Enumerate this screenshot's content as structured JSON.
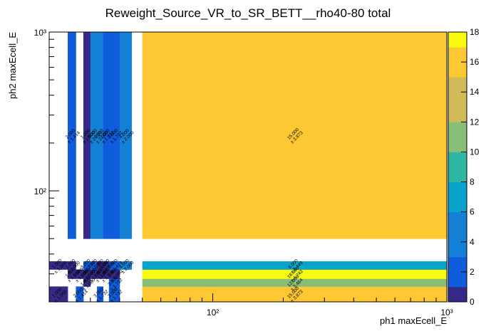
{
  "chart_data": {
    "type": "heatmap",
    "title": "Reweight_Source_VR_to_SR_BETT__rho40-80 total",
    "xlabel": "ph1 maxEcell_E",
    "ylabel": "ph2 maxEcell_E",
    "x_scale": "log",
    "y_scale": "log",
    "xlim": [
      20,
      1000
    ],
    "ylim": [
      20,
      1000
    ],
    "zlim": [
      0,
      18
    ],
    "x_edges": [
      20,
      24,
      26,
      28,
      30,
      32,
      34,
      36,
      40,
      45,
      50,
      1000
    ],
    "y_edges": [
      20,
      25,
      28,
      32,
      36,
      40,
      45,
      50,
      1000
    ],
    "x_ticks": [
      {
        "value": 100,
        "label": "10²"
      },
      {
        "value": 1000,
        "label": "10³"
      }
    ],
    "y_ticks": [
      {
        "value": 100,
        "label": "10²"
      },
      {
        "value": 1000,
        "label": "10³"
      }
    ],
    "colorbar_ticks": [
      "0",
      "2",
      "4",
      "6",
      "8",
      "10",
      "12",
      "14",
      "16",
      "18"
    ],
    "colorbar_palette": [
      "#352a87",
      "#0f5cdd",
      "#1481d6",
      "#06a4ca",
      "#2eb7a4",
      "#87bf77",
      "#d1bb59",
      "#fec832",
      "#f9fb0e"
    ],
    "cells": [
      {
        "ix": 0,
        "iy": 0,
        "value": 1,
        "label": "1.000",
        "error": "± 1.000"
      },
      {
        "ix": 2,
        "iy": 0,
        "value": 2,
        "label": "2.000",
        "error": "± 1.414"
      },
      {
        "ix": 5,
        "iy": 0,
        "value": 3,
        "label": "3.000",
        "error": "± 1.732"
      },
      {
        "ix": 7,
        "iy": 0,
        "value": 3,
        "label": "3.000",
        "error": "± 1.732"
      },
      {
        "ix": 10,
        "iy": 0,
        "value": 15,
        "label": "15.000",
        "error": "± 3.873"
      },
      {
        "ix": 3,
        "iy": 1,
        "value": 1,
        "label": "1.000",
        "error": "± 1.000"
      },
      {
        "ix": 7,
        "iy": 1,
        "value": 3,
        "label": "3.000",
        "error": "± 1.732"
      },
      {
        "ix": 10,
        "iy": 1,
        "value": 12,
        "label": "12.000",
        "error": "± 3.464"
      },
      {
        "ix": 1,
        "iy": 2,
        "value": 1,
        "label": "1.000",
        "error": "± 1.000"
      },
      {
        "ix": 2,
        "iy": 2,
        "value": 1,
        "label": "1.000",
        "error": "± 1.000"
      },
      {
        "ix": 3,
        "iy": 2,
        "value": 1,
        "label": "1.000",
        "error": "± 1.000"
      },
      {
        "ix": 4,
        "iy": 2,
        "value": 1,
        "label": "1.000",
        "error": "± 1.000"
      },
      {
        "ix": 5,
        "iy": 2,
        "value": 1,
        "label": "1.000",
        "error": "± 1.000"
      },
      {
        "ix": 6,
        "iy": 2,
        "value": 1,
        "label": "1.000",
        "error": "± 1.000"
      },
      {
        "ix": 7,
        "iy": 2,
        "value": 1,
        "label": "1.000",
        "error": "± 1.000"
      },
      {
        "ix": 10,
        "iy": 2,
        "value": 18,
        "label": "18.000",
        "error": "± 4.243"
      },
      {
        "ix": 0,
        "iy": 3,
        "value": 1,
        "label": "1.000",
        "error": "± 1.000"
      },
      {
        "ix": 1,
        "iy": 3,
        "value": 1,
        "label": "1.000",
        "error": "± 1.000"
      },
      {
        "ix": 3,
        "iy": 3,
        "value": 3,
        "label": "3.000",
        "error": "± 1.732"
      },
      {
        "ix": 4,
        "iy": 3,
        "value": 3,
        "label": "3.000",
        "error": "± 1.732"
      },
      {
        "ix": 5,
        "iy": 3,
        "value": 1,
        "label": "1.000",
        "error": "± 1.000"
      },
      {
        "ix": 6,
        "iy": 3,
        "value": 1,
        "label": "1.000",
        "error": "± 1.000"
      },
      {
        "ix": 7,
        "iy": 3,
        "value": 2,
        "label": "2.000",
        "error": "± 1.414"
      },
      {
        "ix": 8,
        "iy": 3,
        "value": 4,
        "label": "4.000",
        "error": "± 2.000"
      },
      {
        "ix": 10,
        "iy": 3,
        "value": 6,
        "label": "6.000",
        "error": "± 2.449"
      },
      {
        "ix": 1,
        "iy": 7,
        "value": 2,
        "label": "2.000",
        "error": "± 1.414"
      },
      {
        "ix": 3,
        "iy": 7,
        "value": 1,
        "label": "1.000",
        "error": "± 1.000"
      },
      {
        "ix": 4,
        "iy": 7,
        "value": 5,
        "label": "5.000",
        "error": "± 2.236"
      },
      {
        "ix": 5,
        "iy": 7,
        "value": 4,
        "label": "4.000",
        "error": "± 2.000"
      },
      {
        "ix": 6,
        "iy": 7,
        "value": 3,
        "label": "3.000",
        "error": "± 1.732"
      },
      {
        "ix": 7,
        "iy": 7,
        "value": 3,
        "label": "3.000",
        "error": "± 1.732"
      },
      {
        "ix": 8,
        "iy": 7,
        "value": 4,
        "label": "4.000",
        "error": "± 2.000"
      },
      {
        "ix": 10,
        "iy": 7,
        "value": 15,
        "label": "15.000",
        "error": "± 3.873"
      }
    ]
  }
}
